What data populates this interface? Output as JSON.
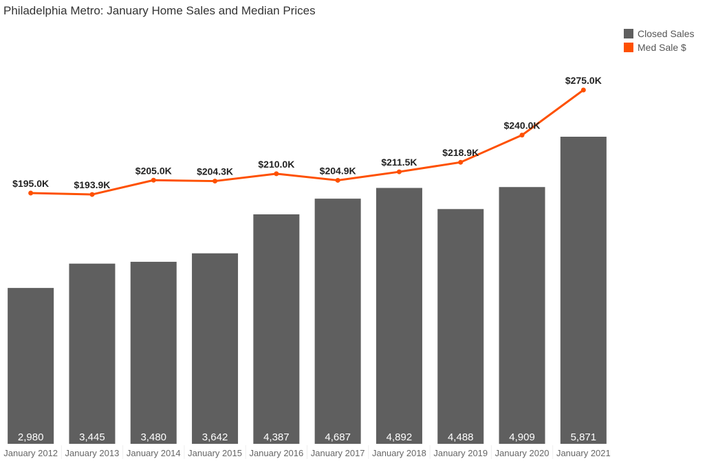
{
  "chart_data": {
    "type": "bar",
    "title": "Philadelphia Metro: January Home Sales and Median Prices",
    "xlabel": "",
    "ylabel": "",
    "categories": [
      "January 2012",
      "January 2013",
      "January 2014",
      "January 2015",
      "January 2016",
      "January 2017",
      "January 2018",
      "January 2019",
      "January 2020",
      "January 2021"
    ],
    "series": [
      {
        "name": "Closed Sales",
        "type": "bar",
        "color": "#5f5f5f",
        "values": [
          2980,
          3445,
          3480,
          3642,
          4387,
          4687,
          4892,
          4488,
          4909,
          5871
        ],
        "labels": [
          "2,980",
          "3,445",
          "3,480",
          "3,642",
          "4,387",
          "4,687",
          "4,892",
          "4,488",
          "4,909",
          "5,871"
        ]
      },
      {
        "name": "Med Sale $",
        "type": "line",
        "color": "#fe5000",
        "values": [
          195.0,
          193.9,
          205.0,
          204.3,
          210.0,
          204.9,
          211.5,
          218.9,
          240.0,
          275.0
        ],
        "labels": [
          "$195.0K",
          "$193.9K",
          "$205.0K",
          "$204.3K",
          "$210.0K",
          "$204.9K",
          "$211.5K",
          "$218.9K",
          "$240.0K",
          "$275.0K"
        ]
      }
    ],
    "legend": {
      "position": "top-right",
      "entries": [
        "Closed Sales",
        "Med Sale $"
      ]
    },
    "grid": false
  }
}
